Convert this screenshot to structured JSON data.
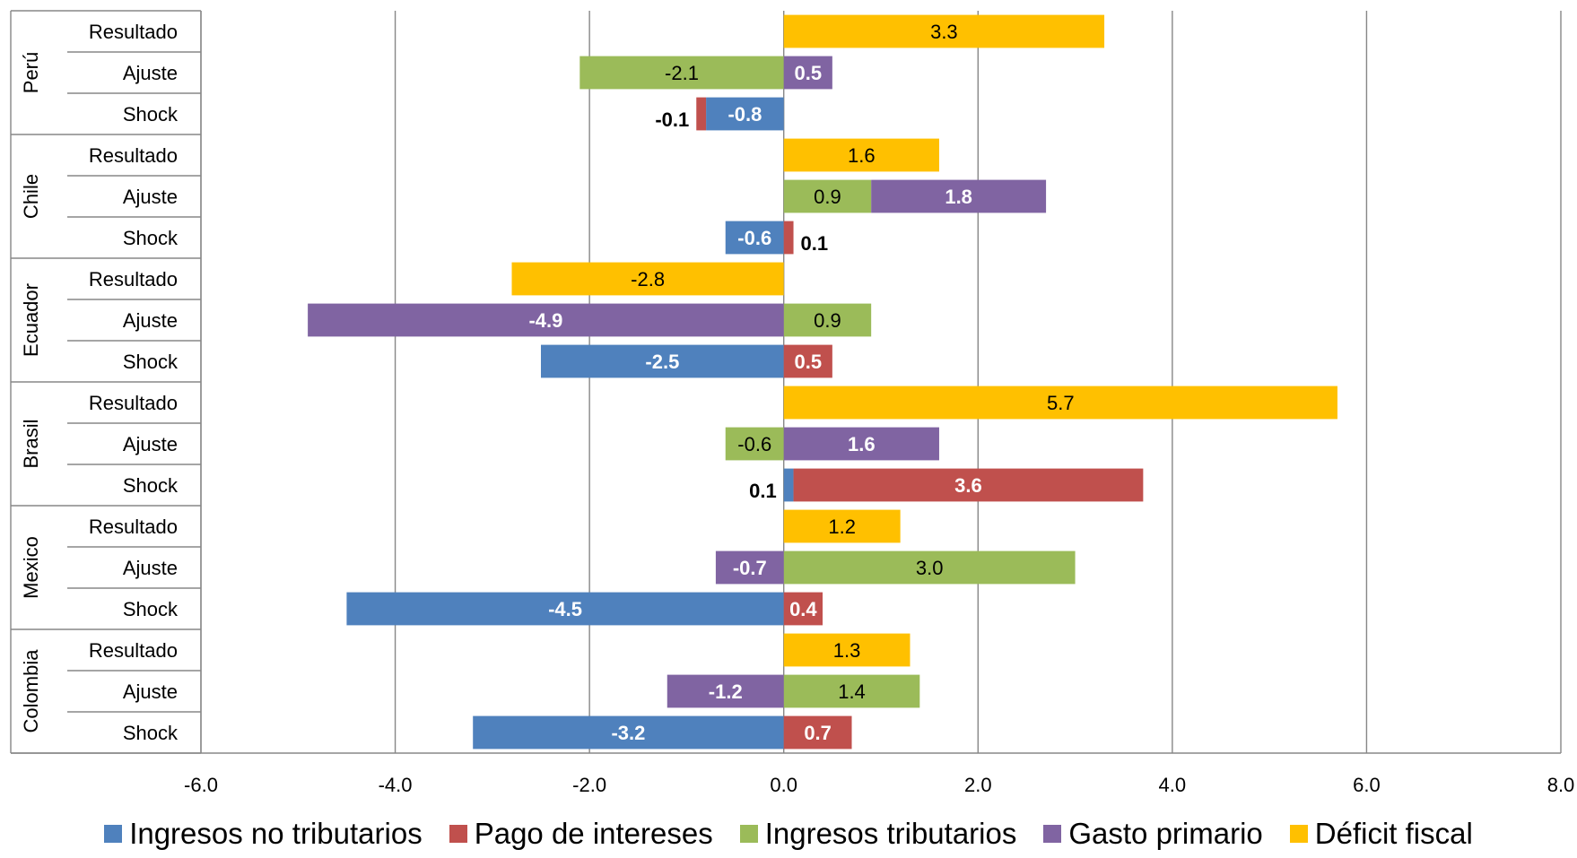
{
  "chart_data": {
    "type": "bar",
    "orientation": "horizontal",
    "stacked": true,
    "xlim": [
      -6.0,
      8.0
    ],
    "x_ticks": [
      "-6.0",
      "-4.0",
      "-2.0",
      "0.0",
      "2.0",
      "4.0",
      "6.0",
      "8.0"
    ],
    "grid": true,
    "legend_position": "bottom",
    "legend": [
      {
        "key": "ingresos_no_tributarios",
        "label": "Ingresos no tributarios",
        "color": "#4F81BD"
      },
      {
        "key": "pago_de_intereses",
        "label": "Pago de intereses",
        "color": "#C0504D"
      },
      {
        "key": "ingresos_tributarios",
        "label": "Ingresos tributarios",
        "color": "#9BBB59"
      },
      {
        "key": "gasto_primario",
        "label": "Gasto primario",
        "color": "#8064A2"
      },
      {
        "key": "deficit_fiscal",
        "label": "Déficit fiscal",
        "color": "#FFC000"
      }
    ],
    "groups": [
      {
        "country": "Perú",
        "rows": [
          {
            "label": "Resultado",
            "segments": [
              {
                "series": "deficit_fiscal",
                "value": 3.3,
                "label": "3.3"
              }
            ]
          },
          {
            "label": "Ajuste",
            "segments": [
              {
                "series": "ingresos_tributarios",
                "value": -2.1,
                "label": "-2.1"
              },
              {
                "series": "gasto_primario",
                "value": 0.5,
                "label": "0.5"
              }
            ]
          },
          {
            "label": "Shock",
            "segments": [
              {
                "series": "ingresos_no_tributarios",
                "value": -0.8,
                "label": "-0.8"
              },
              {
                "series": "pago_de_intereses",
                "value": -0.1,
                "label": "-0.1"
              }
            ]
          }
        ]
      },
      {
        "country": "Chile",
        "rows": [
          {
            "label": "Resultado",
            "segments": [
              {
                "series": "deficit_fiscal",
                "value": 1.6,
                "label": "1.6"
              }
            ]
          },
          {
            "label": "Ajuste",
            "segments": [
              {
                "series": "ingresos_tributarios",
                "value": 0.9,
                "label": "0.9"
              },
              {
                "series": "gasto_primario",
                "value": 1.8,
                "label": "1.8"
              }
            ]
          },
          {
            "label": "Shock",
            "segments": [
              {
                "series": "ingresos_no_tributarios",
                "value": -0.6,
                "label": "-0.6"
              },
              {
                "series": "pago_de_intereses",
                "value": 0.1,
                "label": "0.1"
              }
            ]
          }
        ]
      },
      {
        "country": "Ecuador",
        "rows": [
          {
            "label": "Resultado",
            "segments": [
              {
                "series": "deficit_fiscal",
                "value": -2.8,
                "label": "-2.8"
              }
            ]
          },
          {
            "label": "Ajuste",
            "segments": [
              {
                "series": "ingresos_tributarios",
                "value": 0.9,
                "label": "0.9"
              },
              {
                "series": "gasto_primario",
                "value": -4.9,
                "label": "-4.9"
              }
            ]
          },
          {
            "label": "Shock",
            "segments": [
              {
                "series": "ingresos_no_tributarios",
                "value": -2.5,
                "label": "-2.5"
              },
              {
                "series": "pago_de_intereses",
                "value": 0.5,
                "label": "0.5"
              }
            ]
          }
        ]
      },
      {
        "country": "Brasil",
        "rows": [
          {
            "label": "Resultado",
            "segments": [
              {
                "series": "deficit_fiscal",
                "value": 5.7,
                "label": "5.7"
              }
            ]
          },
          {
            "label": "Ajuste",
            "segments": [
              {
                "series": "ingresos_tributarios",
                "value": -0.6,
                "label": "-0.6"
              },
              {
                "series": "gasto_primario",
                "value": 1.6,
                "label": "1.6"
              }
            ]
          },
          {
            "label": "Shock",
            "segments": [
              {
                "series": "ingresos_no_tributarios",
                "value": 0.1,
                "label": "0.1"
              },
              {
                "series": "pago_de_intereses",
                "value": 3.6,
                "label": "3.6"
              }
            ]
          }
        ]
      },
      {
        "country": "Mexico",
        "rows": [
          {
            "label": "Resultado",
            "segments": [
              {
                "series": "deficit_fiscal",
                "value": 1.2,
                "label": "1.2"
              }
            ]
          },
          {
            "label": "Ajuste",
            "segments": [
              {
                "series": "ingresos_tributarios",
                "value": 3.0,
                "label": "3.0"
              },
              {
                "series": "gasto_primario",
                "value": -0.7,
                "label": "-0.7"
              }
            ]
          },
          {
            "label": "Shock",
            "segments": [
              {
                "series": "ingresos_no_tributarios",
                "value": -4.5,
                "label": "-4.5"
              },
              {
                "series": "pago_de_intereses",
                "value": 0.4,
                "label": "0.4"
              }
            ]
          }
        ]
      },
      {
        "country": "Colombia",
        "rows": [
          {
            "label": "Resultado",
            "segments": [
              {
                "series": "deficit_fiscal",
                "value": 1.3,
                "label": "1.3"
              }
            ]
          },
          {
            "label": "Ajuste",
            "segments": [
              {
                "series": "ingresos_tributarios",
                "value": 1.4,
                "label": "1.4"
              },
              {
                "series": "gasto_primario",
                "value": -1.2,
                "label": "-1.2"
              }
            ]
          },
          {
            "label": "Shock",
            "segments": [
              {
                "series": "ingresos_no_tributarios",
                "value": -3.2,
                "label": "-3.2"
              },
              {
                "series": "pago_de_intereses",
                "value": 0.7,
                "label": "0.7"
              }
            ]
          }
        ]
      }
    ]
  }
}
